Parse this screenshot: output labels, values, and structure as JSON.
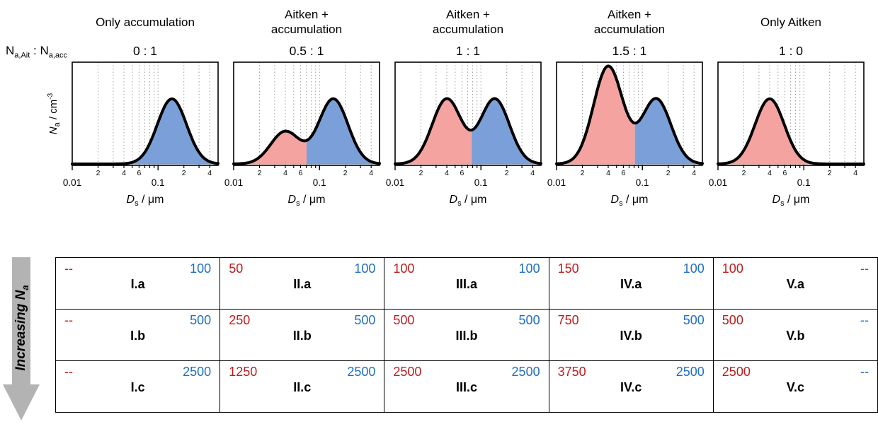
{
  "colors": {
    "aitken_fill": "#f4a3a0",
    "accum_fill": "#7ba0d9",
    "aitken_text": "#bf1d1d",
    "accum_text": "#1f6fc4",
    "curve": "#000000",
    "gridline": "#9b9b9b",
    "frame": "#000000",
    "arrow": "#b3b3b3",
    "tick": "#000000"
  },
  "ratio_label_parts": {
    "sym1": "N",
    "sub1": "a,Ait",
    "sep": " : ",
    "sym2": "N",
    "sub2": "a,acc"
  },
  "y_axis_label_parts": {
    "sym": "N",
    "sub": "a",
    "mid": " / cm",
    "sup": "-3"
  },
  "x_axis_label_parts": {
    "sym": "D",
    "sub": "s",
    "rest": " / μm"
  },
  "increasing_label_parts": {
    "pre": "Increasing ",
    "sym": "N",
    "sub": "a"
  },
  "chart_data": {
    "type": "line",
    "x_scale": "log",
    "x_range_um": [
      0.01,
      0.5
    ],
    "y_max_rel": 1.52,
    "grid": "vertical-dotted",
    "modes": {
      "aitken": {
        "median_um": 0.04,
        "gsd": 1.48
      },
      "accumulation": {
        "median_um": 0.145,
        "gsd": 1.48
      }
    },
    "x_axis_ticks": {
      "major": [
        {
          "value": 0.01,
          "label": "0.01"
        },
        {
          "value": 0.1,
          "label": "0.1"
        }
      ],
      "minor_labeled": [
        {
          "value": 0.02,
          "label": "2"
        },
        {
          "value": 0.04,
          "label": "4"
        },
        {
          "value": 0.06,
          "label": "6"
        },
        {
          "value": 0.2,
          "label": "2"
        },
        {
          "value": 0.4,
          "label": "4"
        }
      ]
    },
    "panels": [
      {
        "title": "Only accumulation",
        "ratio": "0 : 1",
        "aitken_rel": 0,
        "accum_rel": 1
      },
      {
        "title": "Aitken +\naccumulation",
        "ratio": "0.5 : 1",
        "aitken_rel": 0.5,
        "accum_rel": 1
      },
      {
        "title": "Aitken +\naccumulation",
        "ratio": "1 : 1",
        "aitken_rel": 1,
        "accum_rel": 1
      },
      {
        "title": "Aitken +\naccumulation",
        "ratio": "1.5 : 1",
        "aitken_rel": 1.5,
        "accum_rel": 1
      },
      {
        "title": "Only Aitken",
        "ratio": "1 : 0",
        "aitken_rel": 1,
        "accum_rel": 0
      }
    ]
  },
  "table": {
    "rows": [
      {
        "cells": [
          {
            "ait": "--",
            "acc": "100",
            "label": "I.a"
          },
          {
            "ait": "50",
            "acc": "100",
            "label": "II.a"
          },
          {
            "ait": "100",
            "acc": "100",
            "label": "III.a"
          },
          {
            "ait": "150",
            "acc": "100",
            "label": "IV.a"
          },
          {
            "ait": "100",
            "acc": "--",
            "label": "V.a"
          }
        ]
      },
      {
        "cells": [
          {
            "ait": "--",
            "acc": "500",
            "label": "I.b"
          },
          {
            "ait": "250",
            "acc": "500",
            "label": "II.b"
          },
          {
            "ait": "500",
            "acc": "500",
            "label": "III.b"
          },
          {
            "ait": "750",
            "acc": "500",
            "label": "IV.b"
          },
          {
            "ait": "500",
            "acc": "--",
            "label": "V.b"
          }
        ]
      },
      {
        "cells": [
          {
            "ait": "--",
            "acc": "2500",
            "label": "I.c"
          },
          {
            "ait": "1250",
            "acc": "2500",
            "label": "II.c"
          },
          {
            "ait": "2500",
            "acc": "2500",
            "label": "III.c"
          },
          {
            "ait": "3750",
            "acc": "2500",
            "label": "IV.c"
          },
          {
            "ait": "2500",
            "acc": "--",
            "label": "V.c"
          }
        ]
      }
    ]
  }
}
